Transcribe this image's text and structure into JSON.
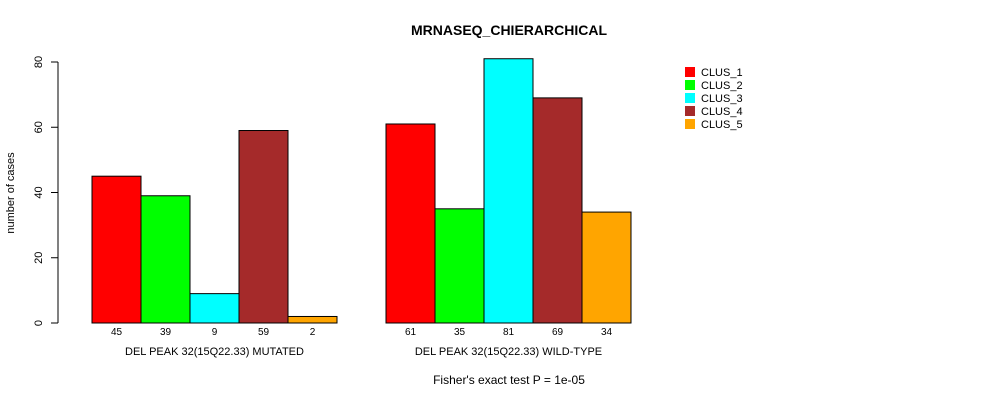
{
  "chart_data": {
    "type": "bar",
    "title": "MRNASEQ_CHIERARCHICAL",
    "ylabel": "number of cases",
    "xlabel": "",
    "ylim": [
      0,
      80
    ],
    "yticks": [
      0,
      20,
      40,
      60,
      80
    ],
    "groups": [
      "DEL PEAK 32(15Q22.33) MUTATED",
      "DEL PEAK 32(15Q22.33) WILD-TYPE"
    ],
    "series": [
      {
        "name": "CLUS_1",
        "color": "#ff0000",
        "values": [
          45,
          61
        ]
      },
      {
        "name": "CLUS_2",
        "color": "#00ff00",
        "values": [
          39,
          35
        ]
      },
      {
        "name": "CLUS_3",
        "color": "#00ffff",
        "values": [
          9,
          81
        ]
      },
      {
        "name": "CLUS_4",
        "color": "#a52a2a",
        "values": [
          59,
          69
        ]
      },
      {
        "name": "CLUS_5",
        "color": "#ffa500",
        "values": [
          2,
          34
        ]
      }
    ],
    "legend_position": "top-right",
    "footer": "Fisher's exact test P = 1e-05"
  }
}
